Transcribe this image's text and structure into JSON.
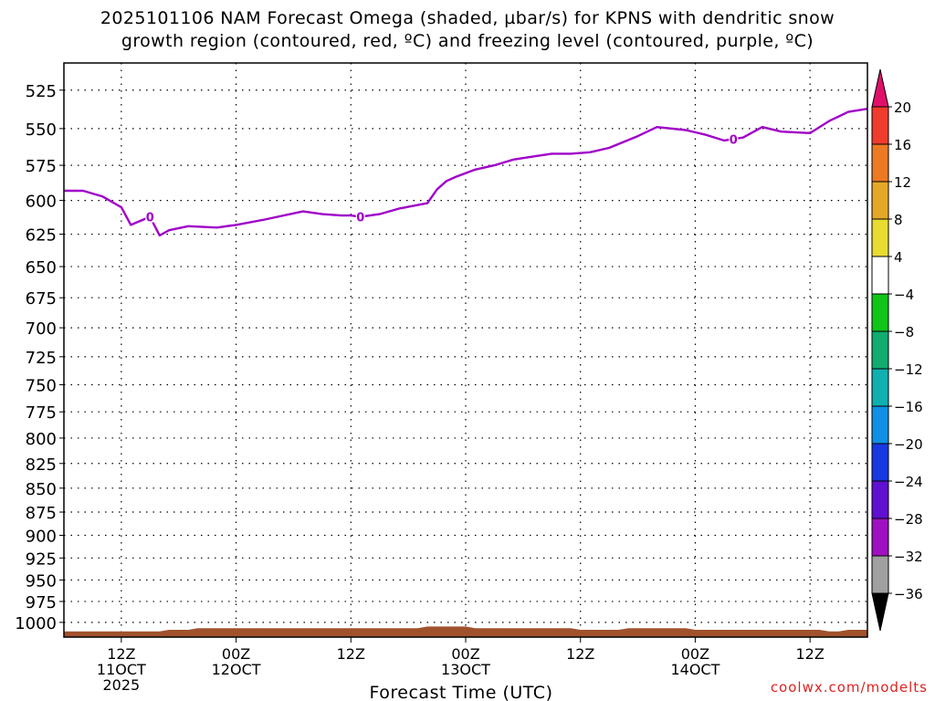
{
  "title_line1": "2025101106 NAM Forecast Omega (shaded, µbar/s) for KPNS with dendritic snow",
  "title_line2": "growth region (contoured, red, ºC) and freezing level (contoured, purple, ºC)",
  "credit": "coolwx.com/modelts",
  "chart_data": {
    "type": "line",
    "title": "2025101106 NAM Forecast Omega (shaded, µbar/s) for KPNS with dendritic snow growth region (contoured, red, ºC) and freezing level (contoured, purple, ºC)",
    "xlabel": "Forecast Time (UTC)",
    "ylabel": "",
    "x_range_hours": [
      0,
      84
    ],
    "y_ticks": [
      525,
      550,
      575,
      600,
      625,
      650,
      675,
      700,
      725,
      750,
      775,
      800,
      825,
      850,
      875,
      900,
      925,
      950,
      975,
      1000
    ],
    "y_range_mb": [
      508,
      1018
    ],
    "y_scale": "log-pressure",
    "grid": "dotted",
    "x_ticks": [
      {
        "hour": 6,
        "label": "12Z",
        "sub": "11OCT",
        "sub2": "2025"
      },
      {
        "hour": 18,
        "label": "00Z",
        "sub": "12OCT",
        "sub2": ""
      },
      {
        "hour": 30,
        "label": "12Z",
        "sub": "",
        "sub2": ""
      },
      {
        "hour": 42,
        "label": "00Z",
        "sub": "13OCT",
        "sub2": ""
      },
      {
        "hour": 54,
        "label": "12Z",
        "sub": "",
        "sub2": ""
      },
      {
        "hour": 66,
        "label": "00Z",
        "sub": "14OCT",
        "sub2": ""
      },
      {
        "hour": 78,
        "label": "12Z",
        "sub": "",
        "sub2": ""
      }
    ],
    "freezing_level": {
      "name": "0",
      "color": "#a000c8",
      "label_hours": [
        9,
        31,
        70
      ],
      "points": [
        [
          0,
          593
        ],
        [
          2,
          593
        ],
        [
          4,
          597
        ],
        [
          6,
          605
        ],
        [
          7,
          618
        ],
        [
          9,
          612
        ],
        [
          10,
          626
        ],
        [
          11,
          622
        ],
        [
          13,
          619
        ],
        [
          16,
          620
        ],
        [
          18,
          618
        ],
        [
          21,
          614
        ],
        [
          25,
          608
        ],
        [
          27,
          610
        ],
        [
          29,
          611
        ],
        [
          30,
          611
        ],
        [
          31,
          612
        ],
        [
          33,
          610
        ],
        [
          35,
          606
        ],
        [
          38,
          602
        ],
        [
          39,
          592
        ],
        [
          40,
          586
        ],
        [
          41,
          583
        ],
        [
          43,
          578
        ],
        [
          45,
          575
        ],
        [
          47,
          571
        ],
        [
          49,
          569
        ],
        [
          51,
          567
        ],
        [
          53,
          567
        ],
        [
          55,
          566
        ],
        [
          57,
          563
        ],
        [
          60,
          555
        ],
        [
          62,
          549
        ],
        [
          65,
          551
        ],
        [
          67,
          554
        ],
        [
          69,
          558
        ],
        [
          71,
          556
        ],
        [
          73,
          549
        ],
        [
          75,
          552
        ],
        [
          78,
          553
        ],
        [
          80,
          545
        ],
        [
          82,
          539
        ],
        [
          84,
          537
        ]
      ]
    },
    "ground_surface_mb": [
      [
        0,
        1011
      ],
      [
        10,
        1011
      ],
      [
        11,
        1009
      ],
      [
        13,
        1009
      ],
      [
        14,
        1007
      ],
      [
        37,
        1007
      ],
      [
        38,
        1005
      ],
      [
        42,
        1005
      ],
      [
        43,
        1007
      ],
      [
        53,
        1007
      ],
      [
        54,
        1009
      ],
      [
        58,
        1009
      ],
      [
        59,
        1007
      ],
      [
        65,
        1007
      ],
      [
        66,
        1009
      ],
      [
        79,
        1009
      ],
      [
        80,
        1011
      ],
      [
        81,
        1011
      ],
      [
        82,
        1009
      ],
      [
        84,
        1009
      ]
    ],
    "ground_color": "#a0522d",
    "colorbar": {
      "labels": [
        "20",
        "16",
        "12",
        "8",
        "4",
        "-4",
        "-8",
        "-12",
        "-16",
        "-20",
        "-24",
        "-28",
        "-32",
        "-36"
      ],
      "colors": [
        "#e0106a",
        "#f03c2c",
        "#ec7a24",
        "#e4a828",
        "#e8dc30",
        "#ffffff",
        "#10c418",
        "#10ac70",
        "#10b0b0",
        "#1090e4",
        "#1838e0",
        "#6010d0",
        "#a010c0",
        "#a0a0a0",
        "#000000"
      ]
    }
  }
}
